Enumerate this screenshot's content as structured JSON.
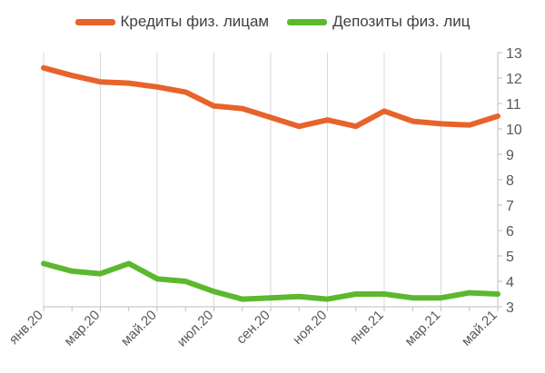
{
  "chart_data": {
    "type": "line",
    "title": "",
    "xlabel": "",
    "ylabel": "",
    "x": [
      "янв.20",
      "фев.20",
      "мар.20",
      "апр.20",
      "май.20",
      "июн.20",
      "июл.20",
      "авг.20",
      "сен.20",
      "окт.20",
      "ноя.20",
      "дек.20",
      "янв.21",
      "фев.21",
      "мар.21",
      "апр.21",
      "май.21"
    ],
    "x_tick_labels": [
      "янв.20",
      "мар.20",
      "май.20",
      "июл.20",
      "сен.20",
      "ноя.20",
      "янв.21",
      "мар.21",
      "май.21"
    ],
    "ylim": [
      3,
      13
    ],
    "y_ticks": [
      3,
      4,
      5,
      6,
      7,
      8,
      9,
      10,
      11,
      12,
      13
    ],
    "y_axis_side": "right",
    "grid": "vertical",
    "legend_position": "top",
    "series": [
      {
        "name": "Кредиты физ. лицам",
        "color": "#E8632B",
        "values": [
          12.4,
          12.1,
          11.85,
          11.8,
          11.65,
          11.45,
          10.9,
          10.8,
          10.45,
          10.1,
          10.35,
          10.1,
          10.7,
          10.3,
          10.2,
          10.15,
          10.5
        ]
      },
      {
        "name": "Депозиты физ. лиц",
        "color": "#5CB82E",
        "values": [
          4.7,
          4.4,
          4.3,
          4.7,
          4.1,
          4.0,
          3.6,
          3.3,
          3.35,
          3.4,
          3.3,
          3.5,
          3.5,
          3.35,
          3.35,
          3.55,
          3.5
        ]
      }
    ]
  }
}
